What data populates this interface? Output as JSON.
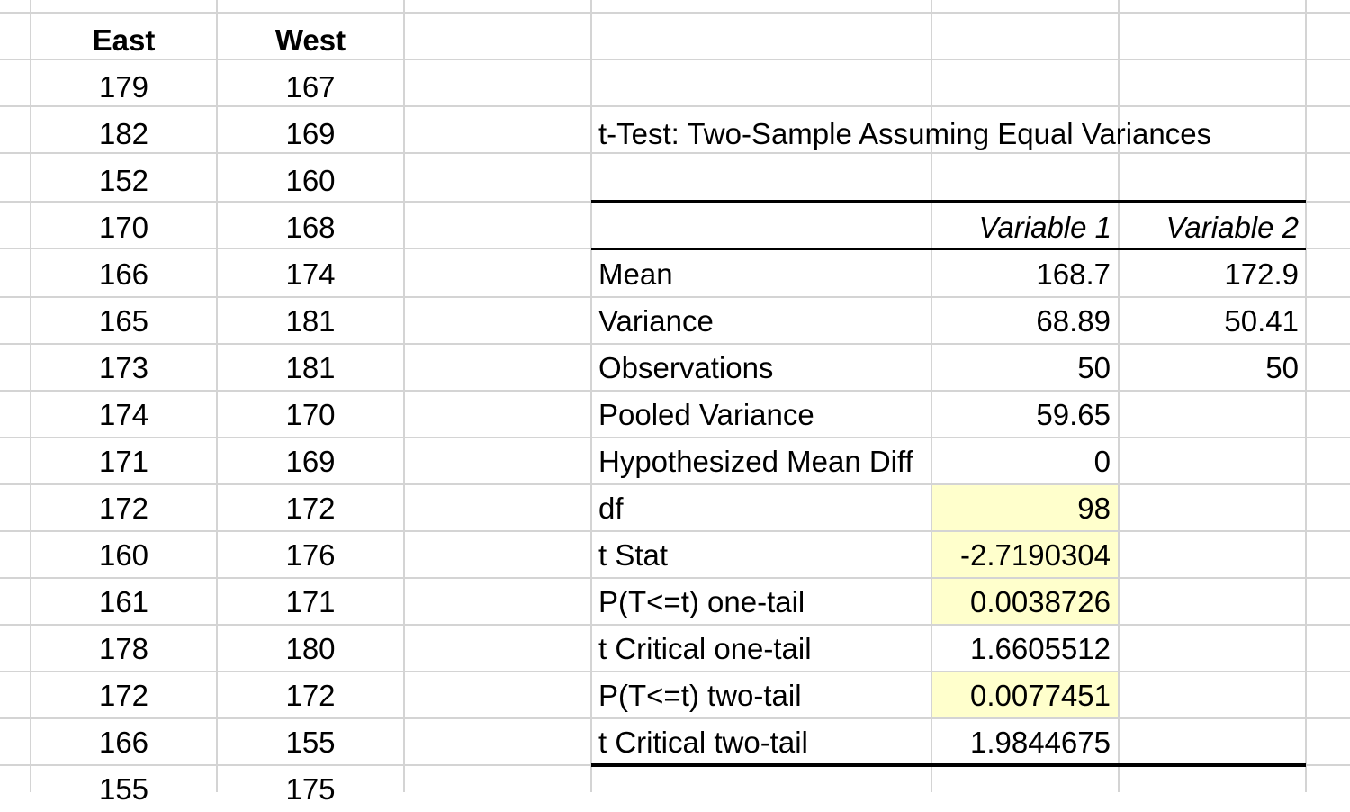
{
  "headers": {
    "east": "East",
    "west": "West"
  },
  "east": [
    "179",
    "182",
    "152",
    "170",
    "166",
    "165",
    "173",
    "174",
    "171",
    "172",
    "160",
    "161",
    "178",
    "172",
    "166",
    "155"
  ],
  "west": [
    "167",
    "169",
    "160",
    "168",
    "174",
    "181",
    "181",
    "170",
    "169",
    "172",
    "176",
    "171",
    "180",
    "172",
    "155",
    "175"
  ],
  "ttest": {
    "title": "t-Test: Two-Sample Assuming Equal Variances",
    "col1": "Variable 1",
    "col2": "Variable 2",
    "rows": [
      {
        "label": "Mean",
        "v1": "168.7",
        "v2": "172.9"
      },
      {
        "label": "Variance",
        "v1": "68.89",
        "v2": "50.41"
      },
      {
        "label": "Observations",
        "v1": "50",
        "v2": "50"
      },
      {
        "label": "Pooled Variance",
        "v1": "59.65",
        "v2": ""
      },
      {
        "label": "Hypothesized Mean Diff",
        "v1": "0",
        "v2": ""
      },
      {
        "label": "df",
        "v1": "98",
        "v2": ""
      },
      {
        "label": "t Stat",
        "v1": "-2.7190304",
        "v2": ""
      },
      {
        "label": "P(T<=t) one-tail",
        "v1": "0.0038726",
        "v2": ""
      },
      {
        "label": "t Critical one-tail",
        "v1": "1.6605512",
        "v2": ""
      },
      {
        "label": "P(T<=t) two-tail",
        "v1": "0.0077451",
        "v2": ""
      },
      {
        "label": "t Critical two-tail",
        "v1": "1.9844675",
        "v2": ""
      }
    ]
  },
  "colors": {
    "gridline": "#d4d4d4",
    "highlight": "#ffffcc",
    "border": "#000000"
  }
}
